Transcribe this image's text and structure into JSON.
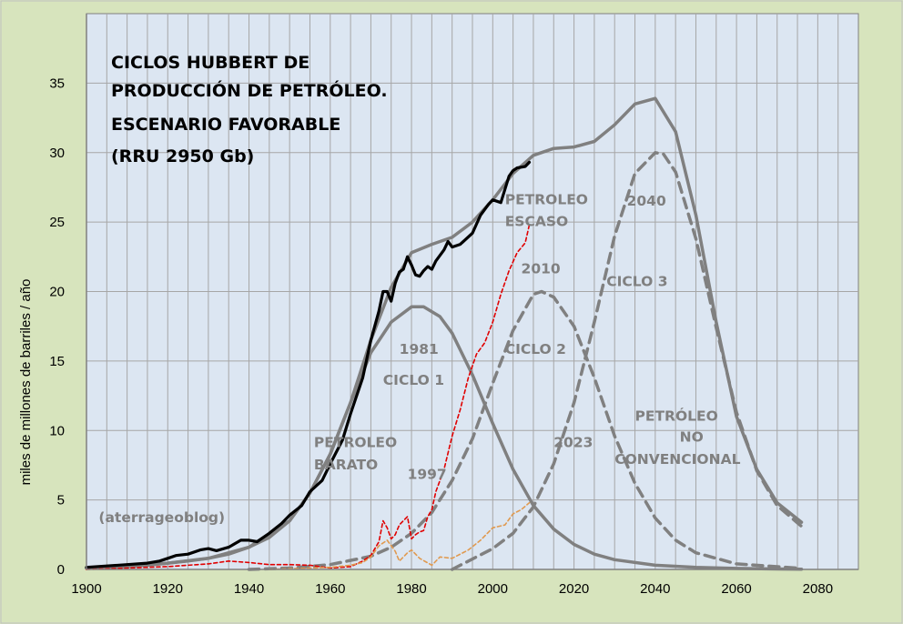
{
  "chart_data": {
    "type": "line",
    "title_lines": [
      "CICLOS HUBBERT DE",
      "PRODUCCIÓN DE PETRÓLEO.",
      "ESCENARIO FAVORABLE",
      "(RRU 2950 Gb)"
    ],
    "xlabel": "",
    "ylabel": "miles de millones de barriles / año",
    "xlim": [
      1900,
      2090
    ],
    "ylim": [
      0,
      40
    ],
    "x_ticks": [
      1900,
      1920,
      1940,
      1960,
      1980,
      2000,
      2020,
      2040,
      2060,
      2080
    ],
    "y_ticks": [
      0,
      5,
      10,
      15,
      20,
      25,
      30,
      35
    ],
    "grid": true,
    "colors": {
      "figure_bg": "#d7e4bd",
      "plot_bg": "#dce6f2",
      "grid": "#a6a6a6",
      "model": "#808080",
      "historical": "#000000",
      "cheap_oil": "#e00000",
      "unconventional": "#e09a50"
    },
    "series": [
      {
        "style": "total_model",
        "x": [
          1900,
          1905,
          1910,
          1915,
          1920,
          1925,
          1930,
          1935,
          1940,
          1945,
          1950,
          1955,
          1960,
          1965,
          1970,
          1975,
          1980,
          1985,
          1990,
          1995,
          2000,
          2005,
          2010,
          2015,
          2020,
          2025,
          2030,
          2035,
          2040,
          2045,
          2050,
          2055,
          2060,
          2065,
          2070,
          2076
        ],
        "y": [
          0.1,
          0.15,
          0.2,
          0.3,
          0.45,
          0.6,
          0.8,
          1.1,
          1.6,
          2.3,
          3.5,
          5.5,
          8.3,
          12,
          16.5,
          20.3,
          22.8,
          23.4,
          23.9,
          25.0,
          26.6,
          28.5,
          29.8,
          30.3,
          30.4,
          30.8,
          32.0,
          33.5,
          33.9,
          31.5,
          25.5,
          17.8,
          11.0,
          7.2,
          4.8,
          3.4
        ]
      },
      {
        "style": "cycle1",
        "x": [
          1900,
          1910,
          1920,
          1930,
          1940,
          1950,
          1955,
          1960,
          1965,
          1970,
          1975,
          1980,
          1983,
          1987,
          1990,
          1995,
          2000,
          2005,
          2010,
          2015,
          2020,
          2025,
          2030,
          2040,
          2050,
          2060,
          2070,
          2076
        ],
        "y": [
          0.1,
          0.2,
          0.45,
          0.8,
          1.6,
          3.5,
          5.5,
          8.3,
          12,
          15.6,
          17.8,
          18.9,
          18.9,
          18.2,
          17.0,
          14.0,
          10.5,
          7.2,
          4.6,
          2.9,
          1.8,
          1.1,
          0.7,
          0.3,
          0.15,
          0.07,
          0.03,
          0.02
        ]
      },
      {
        "style": "cycle2",
        "x": [
          1940,
          1950,
          1960,
          1970,
          1975,
          1980,
          1985,
          1990,
          1995,
          2000,
          2005,
          2010,
          2012,
          2015,
          2020,
          2025,
          2030,
          2035,
          2040,
          2045,
          2050,
          2060,
          2076
        ],
        "y": [
          0.0,
          0.1,
          0.35,
          0.95,
          1.6,
          2.6,
          4.1,
          6.4,
          9.4,
          13.4,
          17.2,
          19.8,
          20.0,
          19.6,
          17.5,
          13.8,
          9.6,
          6.2,
          3.7,
          2.1,
          1.2,
          0.4,
          0.08
        ]
      },
      {
        "style": "cycle3",
        "x": [
          1990,
          2000,
          2005,
          2010,
          2015,
          2020,
          2025,
          2030,
          2035,
          2040,
          2042,
          2045,
          2050,
          2055,
          2060,
          2065,
          2070,
          2076
        ],
        "y": [
          0.0,
          1.5,
          2.6,
          4.5,
          7.6,
          12.0,
          17.8,
          24.0,
          28.5,
          30.0,
          29.9,
          28.6,
          23.8,
          17.4,
          11.3,
          7.1,
          4.6,
          3.1
        ]
      },
      {
        "style": "historical",
        "x": [
          1900,
          1905,
          1910,
          1915,
          1918,
          1920,
          1922,
          1925,
          1928,
          1930,
          1932,
          1935,
          1938,
          1940,
          1942,
          1945,
          1948,
          1950,
          1953,
          1955,
          1958,
          1960,
          1963,
          1965,
          1968,
          1970,
          1972,
          1973,
          1974,
          1975,
          1976,
          1977,
          1978,
          1979,
          1980,
          1981,
          1982,
          1983,
          1984,
          1985,
          1986,
          1988,
          1989,
          1990,
          1992,
          1995,
          1997,
          1999,
          2000,
          2002,
          2004,
          2005,
          2006,
          2008,
          2009
        ],
        "y": [
          0.15,
          0.25,
          0.35,
          0.45,
          0.6,
          0.8,
          1.0,
          1.1,
          1.4,
          1.5,
          1.35,
          1.6,
          2.1,
          2.1,
          2.0,
          2.6,
          3.3,
          3.9,
          4.6,
          5.6,
          6.4,
          7.6,
          9.3,
          11.2,
          13.8,
          16.5,
          18.6,
          20.0,
          20.0,
          19.3,
          20.6,
          21.4,
          21.6,
          22.5,
          21.9,
          21.2,
          21.1,
          21.5,
          21.8,
          21.6,
          22.2,
          23.0,
          23.6,
          23.2,
          23.4,
          24.2,
          25.5,
          26.3,
          26.6,
          26.4,
          28.3,
          28.7,
          28.9,
          29.0,
          29.3
        ]
      },
      {
        "style": "cheap_oil",
        "x": [
          1900,
          1910,
          1920,
          1930,
          1935,
          1940,
          1945,
          1950,
          1955,
          1960,
          1965,
          1968,
          1970,
          1972,
          1973,
          1974,
          1975,
          1976,
          1977,
          1978,
          1979,
          1980,
          1981,
          1982,
          1983,
          1984,
          1985,
          1986,
          1988,
          1990,
          1992,
          1994,
          1996,
          1998,
          2000,
          2002,
          2004,
          2006,
          2008,
          2009
        ],
        "y": [
          0.0,
          0.1,
          0.2,
          0.4,
          0.6,
          0.5,
          0.35,
          0.35,
          0.3,
          0.1,
          0.2,
          0.6,
          1.0,
          2.0,
          3.5,
          3.0,
          2.2,
          2.5,
          3.2,
          3.5,
          3.8,
          2.2,
          2.5,
          2.7,
          2.8,
          3.8,
          4.3,
          5.6,
          7.2,
          9.6,
          11.5,
          13.8,
          15.5,
          16.3,
          17.8,
          19.8,
          21.5,
          22.8,
          23.5,
          24.8
        ]
      },
      {
        "style": "unconventional",
        "x": [
          1945,
          1950,
          1955,
          1960,
          1965,
          1968,
          1970,
          1972,
          1974,
          1976,
          1977,
          1979,
          1980,
          1982,
          1985,
          1987,
          1990,
          1994,
          1997,
          1999,
          2000,
          2003,
          2005,
          2007,
          2009
        ],
        "y": [
          0.0,
          0.05,
          0.1,
          0.15,
          0.3,
          0.5,
          0.9,
          1.7,
          2.1,
          1.3,
          0.6,
          1.2,
          1.4,
          0.8,
          0.3,
          0.9,
          0.8,
          1.4,
          2.1,
          2.7,
          3.0,
          3.2,
          4.0,
          4.3,
          4.8
        ]
      }
    ],
    "annotations": [
      {
        "text": "PETROLEO",
        "x": 2003,
        "y": 26.3
      },
      {
        "text": "ESCASO",
        "x": 2003,
        "y": 24.7
      },
      {
        "text": "2010",
        "x": 2007,
        "y": 21.3
      },
      {
        "text": "2040",
        "x": 2033,
        "y": 26.2
      },
      {
        "text": "CICLO 3",
        "x": 2028,
        "y": 20.4
      },
      {
        "text": "1981",
        "x": 1977,
        "y": 15.5
      },
      {
        "text": "CICLO 2",
        "x": 2003,
        "y": 15.5
      },
      {
        "text": "CICLO 1",
        "x": 1973,
        "y": 13.3
      },
      {
        "text": "PETRÓLEO",
        "x": 2035,
        "y": 10.7
      },
      {
        "text": "NO",
        "x": 2046,
        "y": 9.2
      },
      {
        "text": "CONVENCIONAL",
        "x": 2030,
        "y": 7.6
      },
      {
        "text": "PETROLEO",
        "x": 1956,
        "y": 8.8
      },
      {
        "text": "BARATO",
        "x": 1956,
        "y": 7.2
      },
      {
        "text": "2023",
        "x": 2015,
        "y": 8.8
      },
      {
        "text": "1997",
        "x": 1979,
        "y": 6.5
      },
      {
        "text": "(aterrageoblog)",
        "x": 1903,
        "y": 3.4
      }
    ]
  }
}
